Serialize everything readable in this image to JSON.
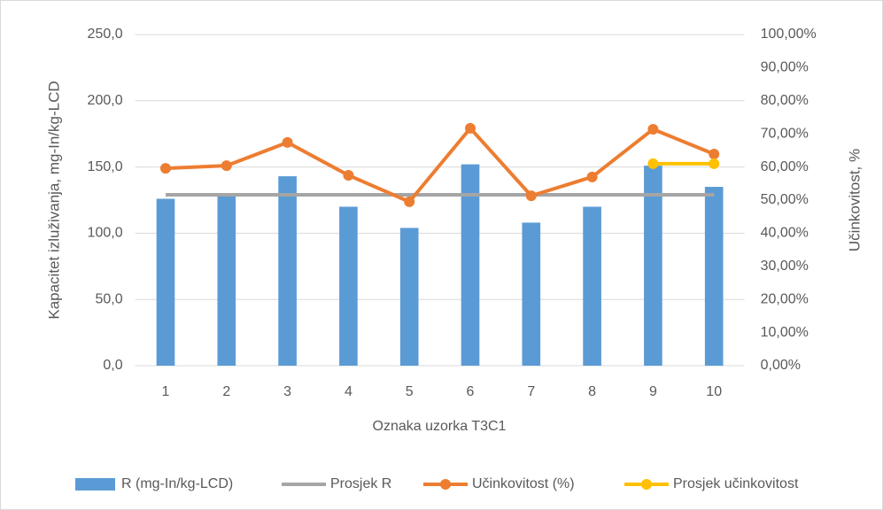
{
  "chart_data": {
    "type": "bar",
    "x_label": "Oznaka uzorka T3C1",
    "y_label": "Kapacitet izluživanja, mg-In/kg-LCD",
    "y2_label": "Učinkovitost, %",
    "categories": [
      "1",
      "2",
      "3",
      "4",
      "5",
      "6",
      "7",
      "8",
      "9",
      "10"
    ],
    "series": [
      {
        "name": "R (mg-In/kg-LCD)",
        "type": "bar",
        "color": "#5b9bd5",
        "values": [
          126,
          128,
          143,
          120,
          104,
          152,
          108,
          120,
          151,
          135
        ]
      },
      {
        "name": "Prosjek R",
        "type": "line",
        "color": "#a5a5a5",
        "markers": false,
        "values": [
          129,
          129,
          129,
          129,
          129,
          129,
          129,
          129,
          129,
          129
        ]
      },
      {
        "name": "Učinkovitost (%)",
        "type": "line",
        "color": "#ed7d31",
        "markers": true,
        "axis": "y2",
        "values": [
          59.6,
          60.4,
          67.4,
          57.5,
          49.5,
          71.7,
          51.3,
          57.0,
          71.4,
          63.9
        ]
      },
      {
        "name": "Prosjek učinkovitost",
        "type": "line",
        "color": "#ffc000",
        "markers": true,
        "axis": "y2",
        "values": [
          null,
          null,
          null,
          null,
          null,
          null,
          null,
          null,
          61.0,
          61.0
        ]
      }
    ],
    "ylim": [
      0,
      250
    ],
    "yticks": [
      {
        "value": 0,
        "label": "0,0"
      },
      {
        "value": 50,
        "label": "50,0"
      },
      {
        "value": 100,
        "label": "100,0"
      },
      {
        "value": 150,
        "label": "150,0"
      },
      {
        "value": 200,
        "label": "200,0"
      },
      {
        "value": 250,
        "label": "250,0"
      }
    ],
    "y2lim": [
      0,
      100
    ],
    "y2ticks": [
      {
        "value": 0,
        "label": "0,00%"
      },
      {
        "value": 10,
        "label": "10,00%"
      },
      {
        "value": 20,
        "label": "20,00%"
      },
      {
        "value": 30,
        "label": "30,00%"
      },
      {
        "value": 40,
        "label": "40,00%"
      },
      {
        "value": 50,
        "label": "50,00%"
      },
      {
        "value": 60,
        "label": "60,00%"
      },
      {
        "value": 70,
        "label": "70,00%"
      },
      {
        "value": 80,
        "label": "80,00%"
      },
      {
        "value": 90,
        "label": "90,00%"
      },
      {
        "value": 100,
        "label": "100,00%"
      }
    ],
    "grid": true,
    "legend": "bottom"
  }
}
